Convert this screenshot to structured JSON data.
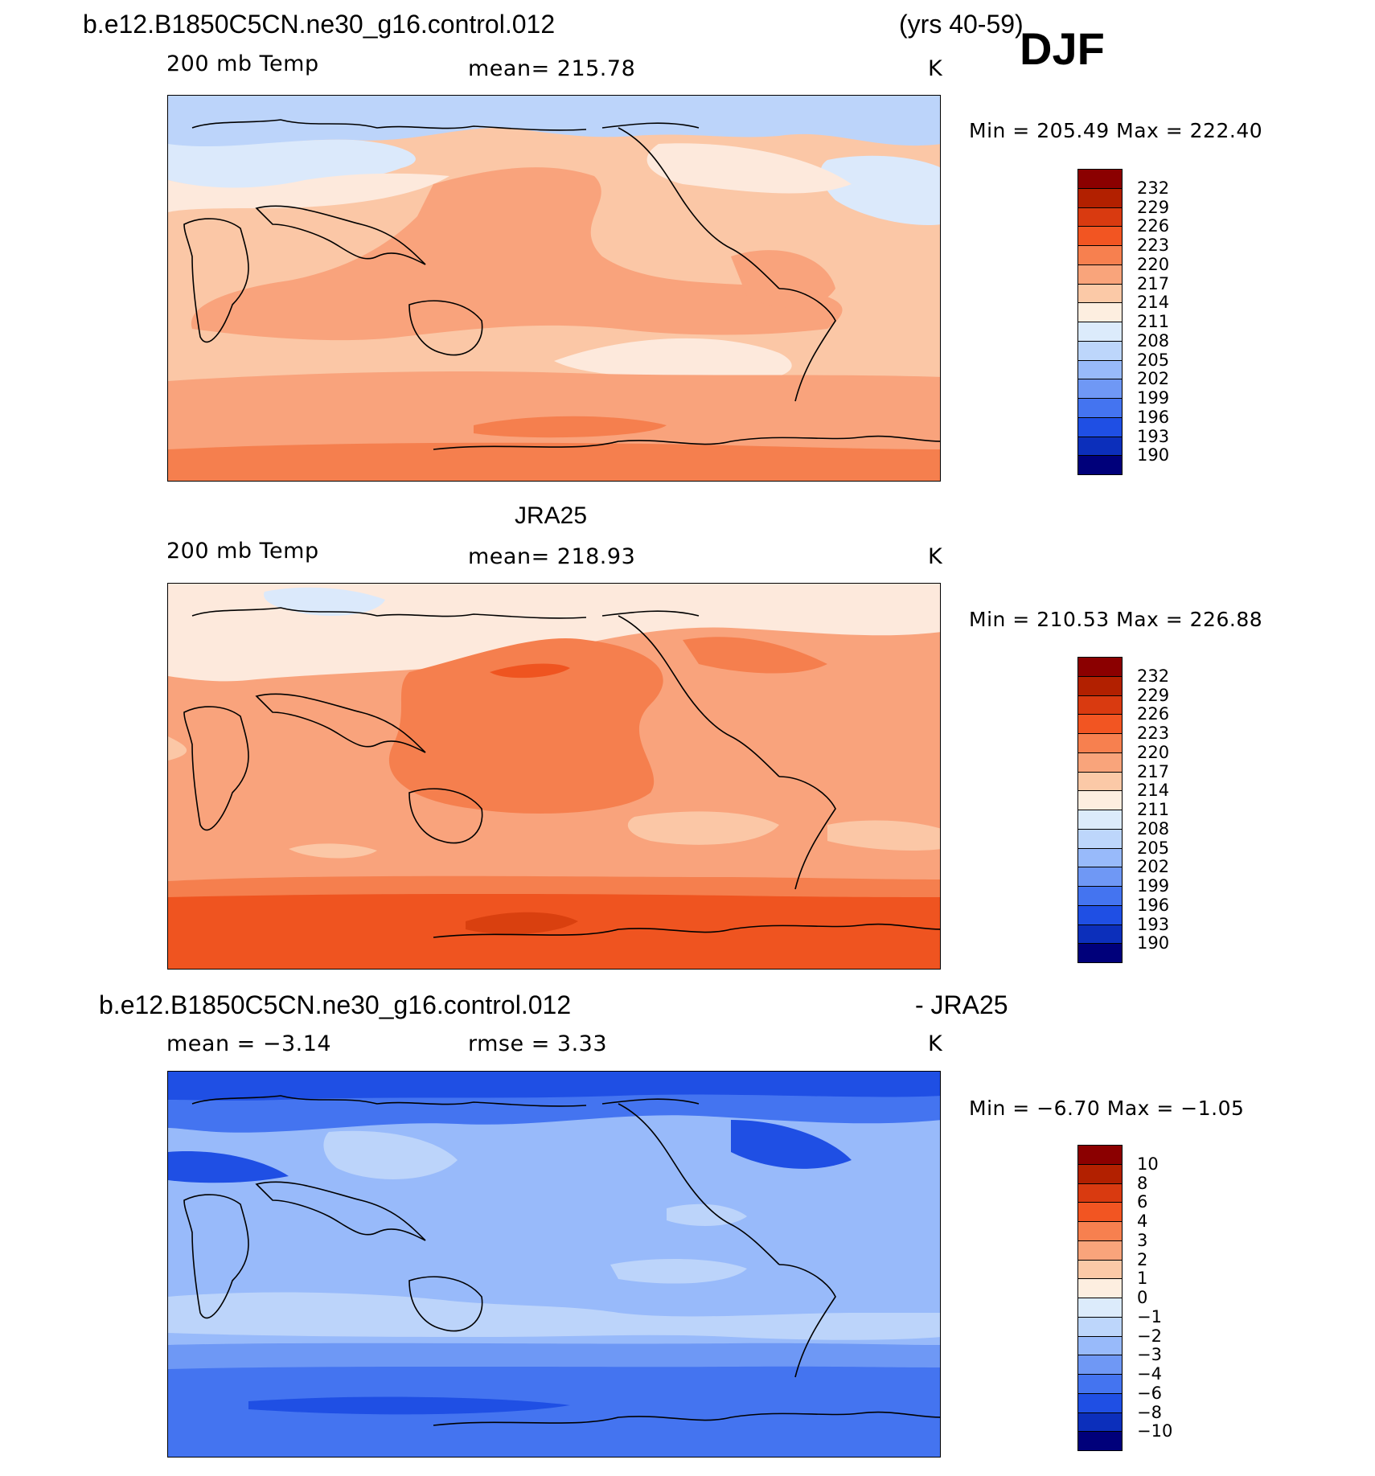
{
  "title": {
    "case": "b.e12.B1850C5CN.ne30_g16.control.012",
    "years": "(yrs 40-59)",
    "season": "DJF"
  },
  "panels": [
    {
      "id": "model",
      "header": "",
      "var_label": "200 mb Temp",
      "stat_label": "mean=  215.78",
      "units": "K",
      "minmax": "Min  =  205.49  Max  =  222.40",
      "levels": [
        "232",
        "229",
        "226",
        "223",
        "220",
        "217",
        "214",
        "211",
        "208",
        "205",
        "202",
        "199",
        "196",
        "193",
        "190"
      ]
    },
    {
      "id": "obs",
      "header": "JRA25",
      "var_label": "200 mb Temp",
      "stat_label": "mean=  218.93",
      "units": "K",
      "minmax": "Min  =  210.53  Max  =  226.88",
      "levels": [
        "232",
        "229",
        "226",
        "223",
        "220",
        "217",
        "214",
        "211",
        "208",
        "205",
        "202",
        "199",
        "196",
        "193",
        "190"
      ]
    },
    {
      "id": "diff",
      "header_left": "b.e12.B1850C5CN.ne30_g16.control.012",
      "header_right": "- JRA25",
      "var_label": "mean  =    −3.14",
      "stat_label": "rmse  =     3.33",
      "units": "K",
      "minmax": "Min  =    −6.70  Max  =    −1.05",
      "levels": [
        "10",
        "8",
        "6",
        "4",
        "3",
        "2",
        "1",
        "0",
        "−1",
        "−2",
        "−3",
        "−4",
        "−6",
        "−8",
        "−10"
      ]
    }
  ],
  "colorbar_colors": [
    "#8b0000",
    "#b22000",
    "#d93a10",
    "#f25522",
    "#f7804f",
    "#f9a47b",
    "#fbc9a7",
    "#fdeee0",
    "#dcebfb",
    "#bdd6fb",
    "#98bafa",
    "#6f98f5",
    "#4474f0",
    "#1f4fe4",
    "#0c2fbb",
    "#00007a"
  ],
  "map_colors": {
    "model": {
      "base": "#fbc7a6",
      "c220": "#f9a37c",
      "c217": "#fbc7a6",
      "c214": "#fde9dc",
      "c211": "#dbe9fb",
      "c208": "#bcd4fa",
      "c223": "#f57f4e"
    },
    "obs": {
      "base": "#f9a37c",
      "c214": "#fde9dc",
      "c211": "#dbe9fb",
      "c217": "#fbc7a6",
      "c223": "#f57f4e",
      "c226": "#ef5420",
      "c229": "#d9400f"
    },
    "diff": {
      "base": "#98bafa",
      "c0": "#dbe9fb",
      "cm1": "#bcd4fa",
      "cm3": "#6e98f5",
      "cm4": "#4474f0",
      "cm6": "#1f4fe4"
    }
  }
}
